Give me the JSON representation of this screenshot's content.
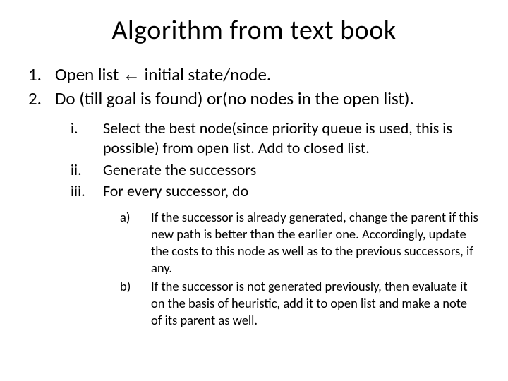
{
  "title": "Algorithm from text book",
  "level1": [
    {
      "marker": "1.",
      "text_pre": "Open list ",
      "arrow": "←",
      "text_post": " initial  state/node."
    },
    {
      "marker": "2.",
      "text": "Do (till goal is found) or(no nodes in the open list)."
    }
  ],
  "level2": [
    {
      "marker": "i.",
      "text": "Select the best node(since priority queue is used, this is possible) from open list. Add to closed list."
    },
    {
      "marker": "ii.",
      "text": "Generate the successors"
    },
    {
      "marker": "iii.",
      "text": "For every successor, do"
    }
  ],
  "level3": [
    {
      "marker": "a)",
      "text": "If the successor is already generated, change the parent if this new path is better than the earlier one. Accordingly, update the costs to this node as well as to the previous successors, if any."
    },
    {
      "marker": "b)",
      "text": "If the successor is not generated previously, then evaluate it on the basis of heuristic, add it to open list and make a note of its parent as well."
    }
  ],
  "colors": {
    "background": "#ffffff",
    "text": "#000000"
  },
  "fonts": {
    "title_size": 38,
    "level1_size": 25,
    "level2_size": 22,
    "level3_size": 18.5,
    "family": "Calibri"
  }
}
